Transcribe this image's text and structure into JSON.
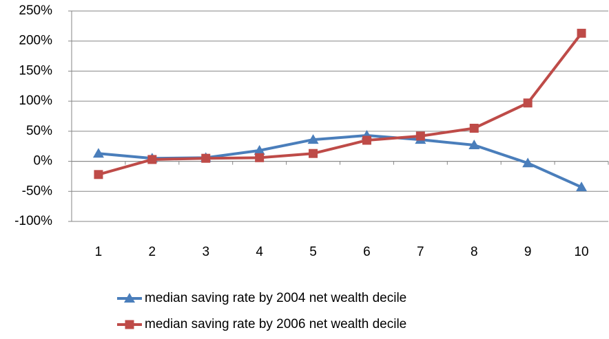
{
  "chart_data": {
    "type": "line",
    "categories": [
      "1",
      "2",
      "3",
      "4",
      "5",
      "6",
      "7",
      "8",
      "9",
      "10"
    ],
    "series": [
      {
        "name": "median saving rate by 2004 net wealth decile",
        "color": "#4a7ebb",
        "marker": "triangle",
        "values": [
          13,
          5,
          6,
          18,
          36,
          43,
          36,
          27,
          -3,
          -43
        ]
      },
      {
        "name": "median saving rate by 2006 net wealth decile",
        "color": "#be4b48",
        "marker": "square",
        "values": [
          -22,
          3,
          5,
          6,
          13,
          35,
          42,
          55,
          97,
          213
        ]
      }
    ],
    "ylim": [
      -100,
      250
    ],
    "yticks": [
      {
        "value": -100,
        "label": "-100%"
      },
      {
        "value": -50,
        "label": "-50%"
      },
      {
        "value": 0,
        "label": "0%"
      },
      {
        "value": 50,
        "label": "50%"
      },
      {
        "value": 100,
        "label": "100%"
      },
      {
        "value": 150,
        "label": "150%"
      },
      {
        "value": 200,
        "label": "200%"
      },
      {
        "value": 250,
        "label": "250%"
      }
    ],
    "grid": true,
    "legend": "bottom"
  }
}
